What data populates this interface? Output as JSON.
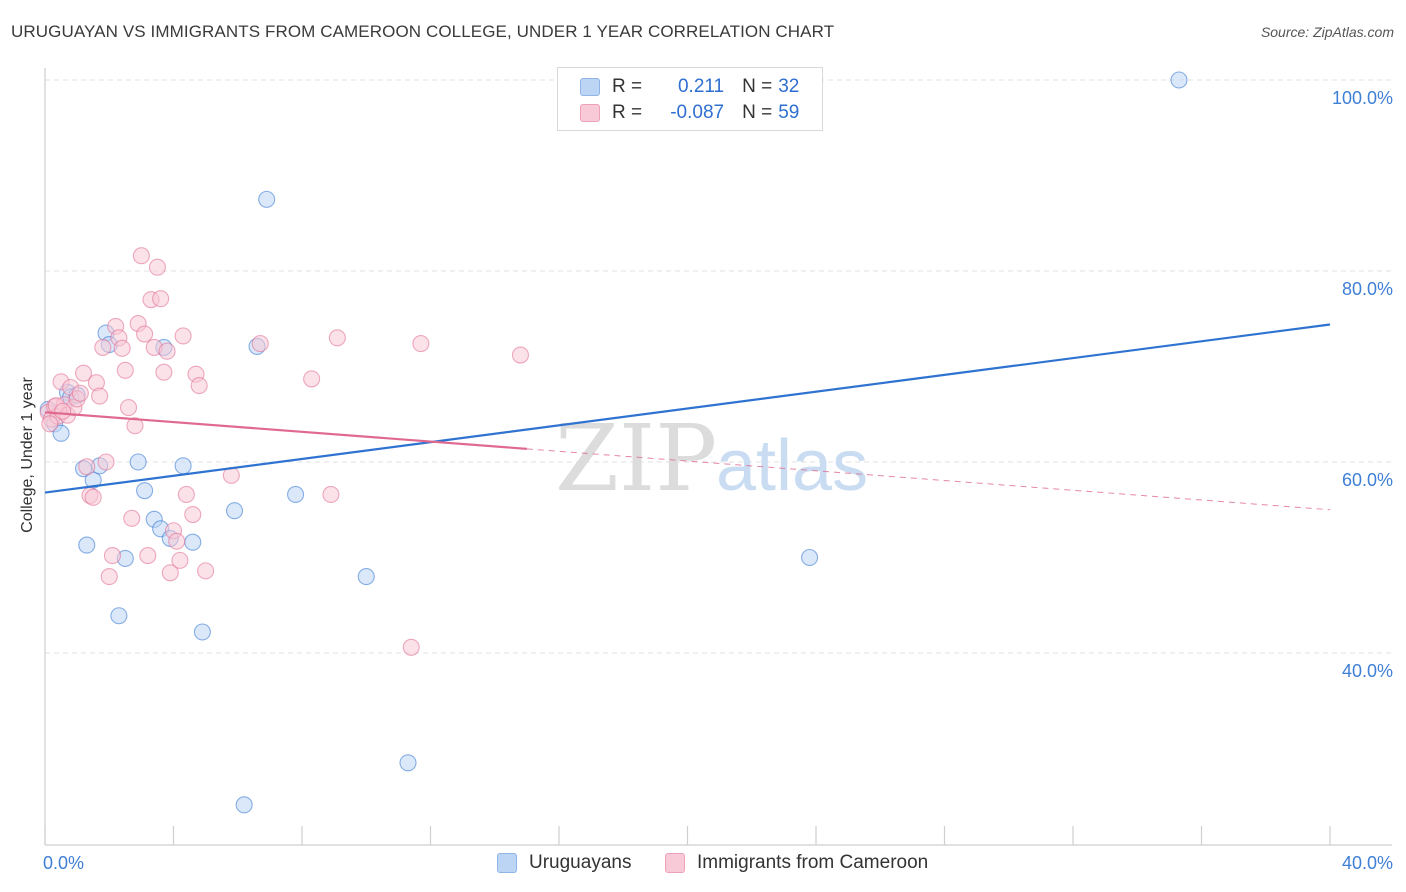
{
  "title": "URUGUAYAN VS IMMIGRANTS FROM CAMEROON COLLEGE, UNDER 1 YEAR CORRELATION CHART",
  "source": "Source: ZipAtlas.com",
  "watermark": {
    "zip": "ZIP",
    "atlas": "atlas"
  },
  "legend": {
    "r_label": "R =",
    "n_label": "N =",
    "rows": [
      {
        "r": "0.211",
        "n": "32",
        "color": "#a8c8f0"
      },
      {
        "r": "-0.087",
        "n": "59",
        "color": "#f5b8cb"
      }
    ]
  },
  "chart_data": {
    "type": "scatter",
    "title": "URUGUAYAN VS IMMIGRANTS FROM CAMEROON COLLEGE, UNDER 1 YEAR CORRELATION CHART",
    "xlabel": "",
    "ylabel": "College, Under 1 year",
    "xlim": [
      0,
      40
    ],
    "ylim": [
      22,
      102
    ],
    "x_tick_labels": [
      "0.0%",
      "40.0%"
    ],
    "y_ticks": [
      100,
      80,
      60,
      40
    ],
    "y_tick_labels": [
      "100.0%",
      "80.0%",
      "60.0%",
      "40.0%"
    ],
    "grid": true,
    "legend_position": "top-center",
    "series": [
      {
        "name": "Uruguayans",
        "color": "#2f73d0",
        "fill": "#bcd5f5",
        "r": 0.211,
        "n": 32,
        "trend": {
          "x": [
            0,
            40
          ],
          "y": [
            56.8,
            74.4
          ]
        },
        "points": [
          [
            0.1,
            65.5
          ],
          [
            0.3,
            64.0
          ],
          [
            0.5,
            63.0
          ],
          [
            0.7,
            67.3
          ],
          [
            0.8,
            66.8
          ],
          [
            1.0,
            67.0
          ],
          [
            1.2,
            59.3
          ],
          [
            1.3,
            51.3
          ],
          [
            1.5,
            58.1
          ],
          [
            1.7,
            59.6
          ],
          [
            1.9,
            73.5
          ],
          [
            2.0,
            72.3
          ],
          [
            2.3,
            43.9
          ],
          [
            2.5,
            49.9
          ],
          [
            2.9,
            60.0
          ],
          [
            3.1,
            57.0
          ],
          [
            3.4,
            54.0
          ],
          [
            3.6,
            53.0
          ],
          [
            3.7,
            72.0
          ],
          [
            3.9,
            52.0
          ],
          [
            4.3,
            59.6
          ],
          [
            4.6,
            51.6
          ],
          [
            4.9,
            42.2
          ],
          [
            5.9,
            54.9
          ],
          [
            6.2,
            24.1
          ],
          [
            6.6,
            72.1
          ],
          [
            6.9,
            87.5
          ],
          [
            7.8,
            56.6
          ],
          [
            10.0,
            48.0
          ],
          [
            11.3,
            28.5
          ],
          [
            23.8,
            50.0
          ],
          [
            35.3,
            100.0
          ]
        ]
      },
      {
        "name": "Immigrants from Cameroon",
        "color": "#e06990",
        "fill": "#f8c9d6",
        "r": -0.087,
        "n": 59,
        "trend": {
          "x": [
            0,
            40
          ],
          "y": [
            65.2,
            55.0
          ]
        },
        "trend_solid_until_x": 15.0,
        "points": [
          [
            0.1,
            65.2
          ],
          [
            0.2,
            64.5
          ],
          [
            0.3,
            65.8
          ],
          [
            0.4,
            64.8
          ],
          [
            0.5,
            68.4
          ],
          [
            0.6,
            66.0
          ],
          [
            0.7,
            64.9
          ],
          [
            0.8,
            67.8
          ],
          [
            0.9,
            65.7
          ],
          [
            1.0,
            66.6
          ],
          [
            1.1,
            67.2
          ],
          [
            1.2,
            69.3
          ],
          [
            1.3,
            59.5
          ],
          [
            1.4,
            56.5
          ],
          [
            1.5,
            56.3
          ],
          [
            1.6,
            68.3
          ],
          [
            1.7,
            66.9
          ],
          [
            1.8,
            72.0
          ],
          [
            1.9,
            60.0
          ],
          [
            2.0,
            48.0
          ],
          [
            2.1,
            50.2
          ],
          [
            2.2,
            74.2
          ],
          [
            2.3,
            73.0
          ],
          [
            2.4,
            71.9
          ],
          [
            2.5,
            69.6
          ],
          [
            2.6,
            65.7
          ],
          [
            2.7,
            54.1
          ],
          [
            2.8,
            63.8
          ],
          [
            2.9,
            74.5
          ],
          [
            3.0,
            81.6
          ],
          [
            3.1,
            73.4
          ],
          [
            3.2,
            50.2
          ],
          [
            3.3,
            77.0
          ],
          [
            3.4,
            72.0
          ],
          [
            3.5,
            80.4
          ],
          [
            3.6,
            77.1
          ],
          [
            3.7,
            69.4
          ],
          [
            3.8,
            71.6
          ],
          [
            3.9,
            48.4
          ],
          [
            4.0,
            52.8
          ],
          [
            4.1,
            51.7
          ],
          [
            4.2,
            49.7
          ],
          [
            4.3,
            73.2
          ],
          [
            4.4,
            56.6
          ],
          [
            4.6,
            54.5
          ],
          [
            4.7,
            69.2
          ],
          [
            4.8,
            68.0
          ],
          [
            5.0,
            48.6
          ],
          [
            5.8,
            58.6
          ],
          [
            6.7,
            72.4
          ],
          [
            8.3,
            68.7
          ],
          [
            8.9,
            56.6
          ],
          [
            9.1,
            73.0
          ],
          [
            11.4,
            40.6
          ],
          [
            11.7,
            72.4
          ],
          [
            14.8,
            71.2
          ],
          [
            0.15,
            64.0
          ],
          [
            0.35,
            65.9
          ],
          [
            0.55,
            65.3
          ]
        ]
      }
    ]
  }
}
